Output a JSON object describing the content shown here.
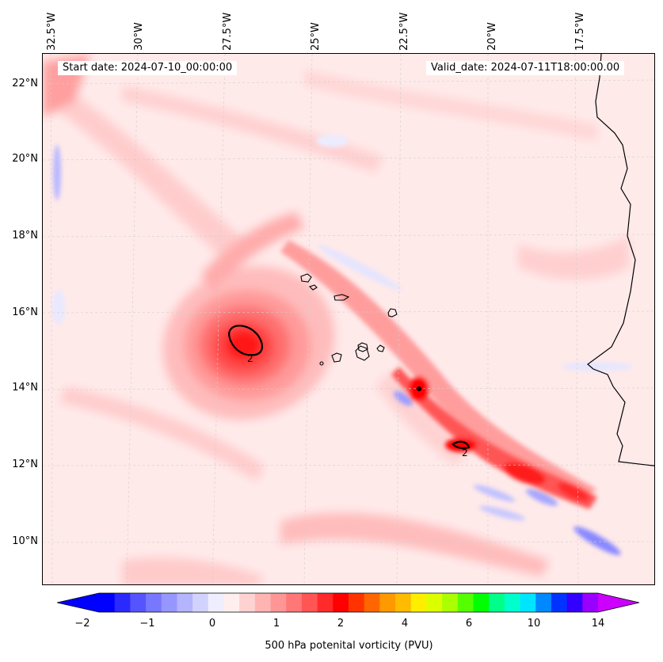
{
  "header": {
    "start_date": "Start date: 2024-07-10_00:00:00",
    "valid_date": "Valid_date: 2024-07-11T18:00:00.00"
  },
  "longitude_labels": [
    "32.5°W",
    "30°W",
    "27.5°W",
    "25°W",
    "22.5°W",
    "20°W",
    "17.5°W"
  ],
  "latitude_labels": [
    "22°N",
    "20°N",
    "18°N",
    "16°N",
    "14°N",
    "12°N",
    "10°N"
  ],
  "contour_labels": [
    "2",
    "2"
  ],
  "colorbar": {
    "label": "500 hPa potenital vorticity (PVU)",
    "ticks": [
      "−2",
      "−1",
      "0",
      "1",
      "2",
      "4",
      "6",
      "10",
      "14"
    ],
    "colors": [
      "#0000ff",
      "#2a2aff",
      "#5555ff",
      "#7777ff",
      "#9696ff",
      "#b4b4ff",
      "#d2d2ff",
      "#eeeeff",
      "#ffeeee",
      "#ffd2d2",
      "#ffb4b4",
      "#ff9696",
      "#ff7777",
      "#ff5555",
      "#ff2a2a",
      "#ff0000",
      "#ff3300",
      "#ff6600",
      "#ff9900",
      "#ffbb00",
      "#ffee00",
      "#dcff00",
      "#aaff00",
      "#55ff00",
      "#00ff00",
      "#00ff88",
      "#00ffcc",
      "#00e5ff",
      "#0088ff",
      "#0033ff",
      "#3300ff",
      "#9900ff"
    ],
    "under_color": "#0000ff",
    "over_color": "#cc00ff"
  }
}
